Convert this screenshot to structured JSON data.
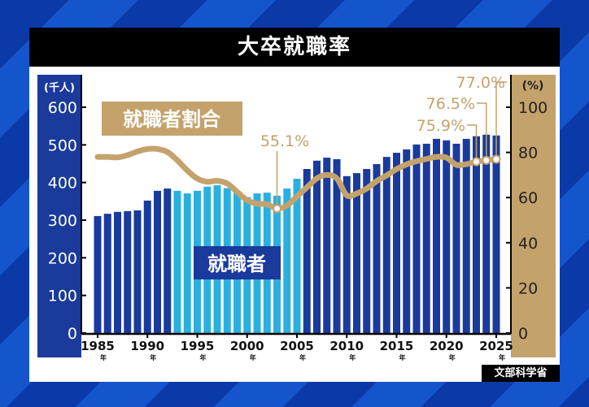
{
  "title": "大卒就職率",
  "source": "文部科学省",
  "colors": {
    "bar_dark": "#1a3a9c",
    "bar_light": "#2ab0e0",
    "line": "#c4a26b",
    "title_bg": "#000000"
  },
  "chart_data": {
    "type": "bar+line",
    "title": "大卒就職率",
    "x": [
      1985,
      1986,
      1987,
      1988,
      1989,
      1990,
      1991,
      1992,
      1993,
      1994,
      1995,
      1996,
      1997,
      1998,
      1999,
      2000,
      2001,
      2002,
      2003,
      2004,
      2005,
      2006,
      2007,
      2008,
      2009,
      2010,
      2011,
      2012,
      2013,
      2014,
      2015,
      2016,
      2017,
      2018,
      2019,
      2020,
      2021,
      2022,
      2023,
      2024,
      2025
    ],
    "x_tick_labels": [
      "1985",
      "1990",
      "1995",
      "2000",
      "2005",
      "2010",
      "2015",
      "2020",
      "2025"
    ],
    "x_tick_suffix": "年",
    "left_axis": {
      "unit_label": "(千人)",
      "ylim": [
        0,
        600
      ],
      "ticks": [
        "0",
        "100",
        "200",
        "300",
        "400",
        "500",
        "600"
      ]
    },
    "right_axis": {
      "unit_label": "(%)",
      "ylim": [
        0,
        100
      ],
      "ticks": [
        "0",
        "20",
        "40",
        "60",
        "80",
        "100"
      ]
    },
    "series": [
      {
        "name": "就職者",
        "type": "bar",
        "axis": "left",
        "highlight_range": [
          1993,
          2005
        ],
        "values": [
          311,
          317,
          322,
          324,
          326,
          352,
          378,
          384,
          378,
          371,
          378,
          389,
          393,
          385,
          376,
          361,
          371,
          373,
          365,
          384,
          410,
          436,
          458,
          466,
          462,
          417,
          425,
          436,
          449,
          468,
          479,
          488,
          501,
          503,
          516,
          512,
          503,
          516,
          523,
          527,
          525
        ]
      },
      {
        "name": "就職者割合",
        "type": "line",
        "axis": "right",
        "values": [
          78,
          78,
          77.8,
          78.8,
          80.4,
          81.5,
          81.5,
          80.2,
          76.5,
          72,
          68.4,
          67,
          67.4,
          66.2,
          62.5,
          58.8,
          57.3,
          57.0,
          55.1,
          56.5,
          60.5,
          64.5,
          68.5,
          70,
          68.5,
          61,
          61.8,
          64,
          67.3,
          69.8,
          72.6,
          74.7,
          76.1,
          77.1,
          78,
          77.7,
          74.5,
          74.8,
          75.9,
          76.5,
          77.0
        ]
      }
    ],
    "annotations": [
      {
        "year": 2003,
        "text": "55.1%"
      },
      {
        "year": 2023,
        "text": "75.9%"
      },
      {
        "year": 2024,
        "text": "76.5%"
      },
      {
        "year": 2025,
        "text": "77.0%"
      }
    ],
    "grid": false
  }
}
